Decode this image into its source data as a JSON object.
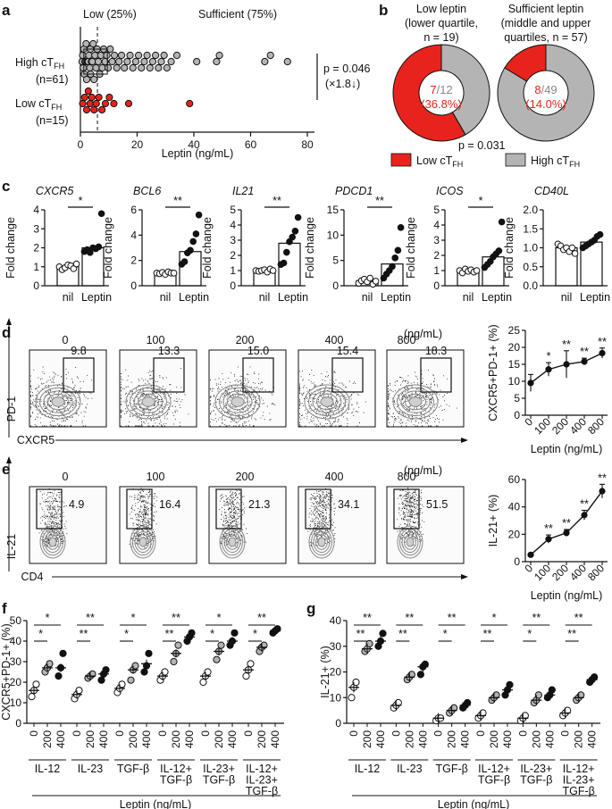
{
  "colors": {
    "red": "#e8231e",
    "gray": "#b4b4b4",
    "dark": "#111111"
  },
  "panel_labels": {
    "a": "a",
    "b": "b",
    "c": "c",
    "d": "d",
    "e": "e",
    "f": "f",
    "g": "g"
  },
  "panel_a": {
    "chart_data": {
      "type": "scatter",
      "xlabel": "Leptin (ng/mL)",
      "xlim": [
        0,
        80
      ],
      "xticks": [
        "0",
        "20",
        "40",
        "60",
        "80"
      ],
      "threshold": 6.0,
      "low_label": "Low (25%)",
      "sufficient_label": "Sufficient (75%)",
      "pvalue_text": "p = 0.046",
      "fold_text": "(×1.8↓)",
      "groups": [
        {
          "name": "High cTFH",
          "n_text": "(n=61)",
          "values": [
            0.6,
            0.8,
            1.0,
            1.2,
            1.4,
            1.6,
            1.8,
            2.0,
            2.2,
            2.4,
            2.6,
            2.8,
            3.0,
            3.3,
            3.6,
            3.9,
            4.2,
            4.5,
            4.8,
            5.1,
            5.5,
            5.9,
            6.3,
            6.8,
            7.2,
            7.7,
            8.2,
            8.7,
            9.3,
            9.8,
            10.5,
            11.2,
            12.0,
            12.8,
            13.6,
            14.5,
            15.5,
            16.5,
            17.5,
            18.5,
            19.5,
            20.5,
            21.5,
            22.5,
            23.5,
            24.5,
            25.5,
            26.5,
            27.5,
            28.5,
            29.5,
            30.5,
            32.0,
            34.0,
            41.0,
            48.0,
            49.0,
            65.0,
            67.0,
            73.0,
            3.5
          ]
        },
        {
          "name": "Low cTFH",
          "n_text": "(n=15)",
          "values": [
            0.8,
            1.5,
            2.2,
            2.8,
            3.4,
            4.0,
            4.8,
            5.6,
            6.5,
            7.6,
            8.8,
            10.2,
            11.8,
            17.0,
            38.5
          ]
        }
      ]
    }
  },
  "panel_b": {
    "titles": [
      [
        "Low leptin",
        "(lower quartile,",
        "n = 19)"
      ],
      [
        "Sufficient leptin",
        "(middle and upper",
        "quartiles, n = 57)"
      ]
    ],
    "chart_data": {
      "type": "pie",
      "pies": [
        {
          "name": "Low leptin",
          "low": 7,
          "total": 12,
          "percent_text": "(36.8%)"
        },
        {
          "name": "Sufficient leptin",
          "low": 8,
          "total": 49,
          "percent_text": "(14.0%)"
        }
      ],
      "pvalue_text": "p = 0.031",
      "legend": [
        "Low cTFH",
        "High cTFH"
      ]
    }
  },
  "panel_c": {
    "ylabel": "Fold change",
    "xcats": [
      "nil",
      "Leptin"
    ],
    "chart_data": [
      {
        "gene": "CXCR5",
        "ylim": [
          0,
          4
        ],
        "yticks": [
          "0",
          "1",
          "2",
          "3",
          "4"
        ],
        "sig": "*",
        "nil": [
          1.0,
          0.85,
          0.95,
          1.1,
          1.05,
          0.9,
          1.15
        ],
        "leptin": [
          1.8,
          1.9,
          1.75,
          2.0,
          1.95,
          2.05,
          3.8
        ],
        "nil_mean": 1.0,
        "leptin_mean": 2.0
      },
      {
        "gene": "BCL6",
        "ylim": [
          0,
          6
        ],
        "yticks": [
          "0",
          "2",
          "4",
          "6"
        ],
        "sig": "**",
        "nil": [
          1.0,
          0.95,
          1.05,
          0.9,
          1.1,
          1.0,
          1.0
        ],
        "leptin": [
          1.7,
          1.9,
          2.6,
          2.8,
          3.5,
          4.1,
          5.6
        ],
        "nil_mean": 1.0,
        "leptin_mean": 2.7
      },
      {
        "gene": "IL21",
        "ylim": [
          0,
          5
        ],
        "yticks": [
          "0",
          "1",
          "2",
          "3",
          "4",
          "5"
        ],
        "sig": "**",
        "nil": [
          1.0,
          0.95,
          1.0,
          1.05,
          0.9,
          1.1,
          1.0
        ],
        "leptin": [
          1.4,
          1.5,
          2.2,
          2.9,
          3.2,
          3.6,
          4.5
        ],
        "nil_mean": 1.0,
        "leptin_mean": 2.8
      },
      {
        "gene": "PDCD1",
        "ylim": [
          0,
          15
        ],
        "yticks": [
          "0",
          "5",
          "10",
          "15"
        ],
        "sig": "**",
        "nil": [
          0.5,
          1.0,
          1.3,
          0.8,
          1.5,
          0.3,
          0.9
        ],
        "leptin": [
          1.5,
          2.3,
          3.0,
          3.8,
          5.5,
          7.0,
          11.5
        ],
        "nil_mean": 1.0,
        "leptin_mean": 4.3
      },
      {
        "gene": "ICOS",
        "ylim": [
          0,
          5
        ],
        "yticks": [
          "0",
          "1",
          "2",
          "3",
          "4",
          "5"
        ],
        "sig": "*",
        "nil": [
          1.0,
          0.85,
          1.1,
          0.95,
          1.05,
          0.9,
          1.0
        ],
        "leptin": [
          1.2,
          1.4,
          1.6,
          1.9,
          2.1,
          2.3,
          4.2
        ],
        "nil_mean": 1.0,
        "leptin_mean": 1.9
      },
      {
        "gene": "CD40L",
        "ylim": [
          0,
          2
        ],
        "yticks": [
          "0.0",
          "0.5",
          "1.0",
          "1.5",
          "2.0"
        ],
        "sig": "",
        "nil": [
          1.1,
          1.05,
          0.95,
          1.0,
          0.9,
          1.0,
          0.85
        ],
        "leptin": [
          1.0,
          1.05,
          1.1,
          1.15,
          1.2,
          1.3,
          1.35
        ],
        "nil_mean": 1.0,
        "leptin_mean": 1.15
      }
    ]
  },
  "panel_d": {
    "doses": [
      "0",
      "100",
      "200",
      "400",
      "800"
    ],
    "dose_unit": "(ng/mL)",
    "gate_values": [
      "9.8",
      "13.3",
      "15.0",
      "15.4",
      "18.3"
    ],
    "yaxis": "PD-1",
    "xaxis": "CXCR5",
    "chart_data": {
      "type": "line",
      "x": [
        "0",
        "100",
        "200",
        "400",
        "800"
      ],
      "values": [
        9.5,
        13.5,
        15.0,
        15.8,
        18.3
      ],
      "errors": [
        2.5,
        2.0,
        4.0,
        1.0,
        1.5
      ],
      "sig": [
        "",
        "*",
        "**",
        "**",
        "**"
      ],
      "ylabel": "CXCR5+PD-1+ (%)",
      "xlabel": "Leptin (ng/mL)",
      "ylim": [
        0,
        25
      ],
      "yticks": [
        "0",
        "5",
        "10",
        "15",
        "20",
        "25"
      ]
    }
  },
  "panel_e": {
    "doses": [
      "0",
      "100",
      "200",
      "400",
      "800"
    ],
    "dose_unit": "(ng/mL)",
    "gate_values": [
      "4.9",
      "16.4",
      "21.3",
      "34.1",
      "51.5"
    ],
    "yaxis": "IL-21",
    "xaxis": "CD4",
    "chart_data": {
      "type": "line",
      "x": [
        "0",
        "100",
        "200",
        "400",
        "800"
      ],
      "values": [
        5.0,
        16.5,
        21.0,
        34.0,
        51.5
      ],
      "errors": [
        0.5,
        3.0,
        2.5,
        3.5,
        5.0
      ],
      "sig": [
        "",
        "**",
        "**",
        "**",
        "**"
      ],
      "ylabel": "IL-21+ (%)",
      "xlabel": "Leptin (ng/mL)",
      "ylim": [
        0,
        60
      ],
      "yticks": [
        "0",
        "20",
        "40",
        "60"
      ]
    }
  },
  "panel_f": {
    "chart_data": {
      "type": "scatter",
      "ylabel": "CXCR5+PD-1+ (%)",
      "xlabel": "Leptin (ng/mL)",
      "ylim": [
        0,
        50
      ],
      "yticks": [
        "0",
        "10",
        "20",
        "30",
        "40",
        "50"
      ],
      "doses": [
        "0",
        "200",
        "400"
      ],
      "groups": [
        {
          "label": [
            "IL-12"
          ],
          "means": [
            16,
            27,
            27
          ],
          "points": [
            [
              13,
              16,
              19
            ],
            [
              25,
              27,
              29
            ],
            [
              23,
              27,
              34
            ]
          ],
          "sig_top": "*",
          "sig_low": "*"
        },
        {
          "label": [
            "IL-23"
          ],
          "means": [
            14,
            23,
            24
          ],
          "points": [
            [
              12,
              14,
              16
            ],
            [
              22,
              23,
              24
            ],
            [
              21,
              24,
              26
            ]
          ],
          "sig_top": "**",
          "sig_low": "**"
        },
        {
          "label": [
            "TGF-β"
          ],
          "means": [
            17,
            26,
            29
          ],
          "points": [
            [
              15,
              17,
              19
            ],
            [
              21,
              26,
              28
            ],
            [
              25,
              28,
              34
            ]
          ],
          "sig_top": "*",
          "sig_low": "*"
        },
        {
          "label": [
            "IL-12+",
            "TGF-β"
          ],
          "means": [
            23,
            34,
            42
          ],
          "points": [
            [
              21,
              23,
              25
            ],
            [
              30,
              34,
              38
            ],
            [
              40,
              42,
              44
            ]
          ],
          "sig_top": "**",
          "sig_low": "**"
        },
        {
          "label": [
            "IL-23+",
            "TGF-β"
          ],
          "means": [
            23,
            35,
            40
          ],
          "points": [
            [
              20,
              23,
              25
            ],
            [
              31,
              35,
              38
            ],
            [
              38,
              40,
              44
            ]
          ],
          "sig_top": "*",
          "sig_low": "*"
        },
        {
          "label": [
            "IL-12+",
            "IL-23+",
            "TGF-β"
          ],
          "means": [
            26,
            37,
            45
          ],
          "points": [
            [
              23,
              26,
              29
            ],
            [
              35,
              37,
              38
            ],
            [
              44,
              45,
              46
            ]
          ],
          "sig_top": "**",
          "sig_low": "*"
        }
      ]
    }
  },
  "panel_g": {
    "chart_data": {
      "type": "scatter",
      "ylabel": "IL-21+ (%)",
      "xlabel": "Leptin (ng/mL)",
      "ylim": [
        0,
        40
      ],
      "yticks": [
        "0",
        "10",
        "20",
        "30",
        "40"
      ],
      "doses": [
        "0",
        "200",
        "400"
      ],
      "groups": [
        {
          "label": [
            "IL-12"
          ],
          "means": [
            14,
            29,
            32
          ],
          "points": [
            [
              10,
              14,
              16
            ],
            [
              28,
              29,
              31
            ],
            [
              30,
              32,
              35
            ]
          ],
          "sig_top": "**",
          "sig_low": "**"
        },
        {
          "label": [
            "IL-23"
          ],
          "means": [
            7,
            18,
            22
          ],
          "points": [
            [
              6,
              7,
              8
            ],
            [
              17,
              18,
              19
            ],
            [
              19,
              22,
              23
            ]
          ],
          "sig_top": "**",
          "sig_low": "**"
        },
        {
          "label": [
            "TGF-β"
          ],
          "means": [
            2,
            5,
            7
          ],
          "points": [
            [
              1,
              2,
              2
            ],
            [
              4,
              5,
              6
            ],
            [
              6,
              7,
              8
            ]
          ],
          "sig_top": "**",
          "sig_low": "*"
        },
        {
          "label": [
            "IL-12+",
            "TGF-β"
          ],
          "means": [
            3,
            10,
            13
          ],
          "points": [
            [
              2,
              3,
              4
            ],
            [
              9,
              10,
              11
            ],
            [
              11,
              13,
              15
            ]
          ],
          "sig_top": "*",
          "sig_low": "**"
        },
        {
          "label": [
            "IL-23+",
            "TGF-β"
          ],
          "means": [
            2,
            9,
            11
          ],
          "points": [
            [
              1,
              2,
              3
            ],
            [
              8,
              9,
              11
            ],
            [
              10,
              11,
              13
            ]
          ],
          "sig_top": "**",
          "sig_low": "*"
        },
        {
          "label": [
            "IL-12+",
            "IL-23+",
            "TGF-β"
          ],
          "means": [
            4,
            10,
            17
          ],
          "points": [
            [
              3,
              4,
              5
            ],
            [
              9,
              10,
              11
            ],
            [
              16,
              17,
              18
            ]
          ],
          "sig_top": "**",
          "sig_low": "**"
        }
      ]
    }
  }
}
